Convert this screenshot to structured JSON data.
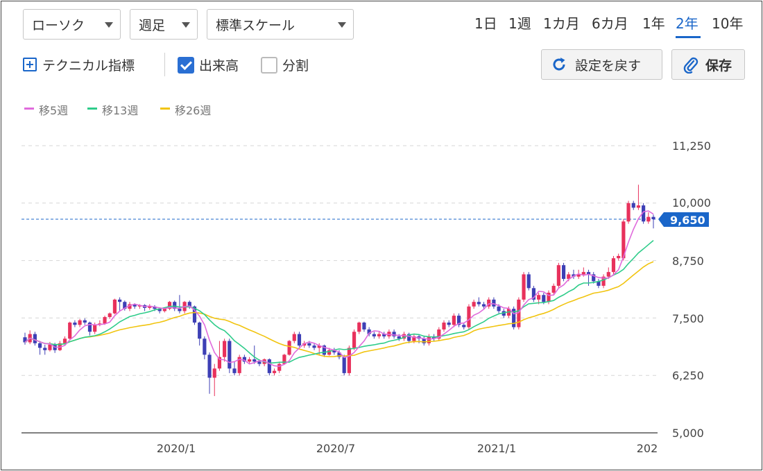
{
  "toolbar": {
    "chart_type": "ローソク",
    "interval": "週足",
    "scale": "標準スケール",
    "periods": [
      "1日",
      "1週",
      "1カ月",
      "6カ月",
      "1年",
      "2年",
      "10年"
    ],
    "active_period": "2年",
    "technical_label": "テクニカル指標",
    "volume_label": "出来高",
    "volume_checked": true,
    "split_label": "分割",
    "split_checked": false,
    "reset_label": "設定を戻す",
    "save_label": "保存"
  },
  "colors": {
    "accent": "#1a66c9",
    "up": "#e8315c",
    "down": "#3d3fb5",
    "ma5": "#e06bdc",
    "ma13": "#2ecc8a",
    "ma26": "#f1c40f",
    "price_tag": "#1a66c9"
  },
  "chart_data": {
    "type": "candlestick",
    "y_ticks": [
      "11,250",
      "10,000",
      "8,750",
      "7,500",
      "6,250",
      "5,000"
    ],
    "y_tick_values": [
      11250,
      10000,
      8750,
      7500,
      6250,
      5000
    ],
    "ylim": [
      5000,
      11250
    ],
    "x_ticks": [
      "2020/1",
      "2020/7",
      "2021/1",
      "202"
    ],
    "current_price_label": "9,650",
    "current_price": 9650,
    "legend": [
      {
        "name": "移5週",
        "color": "#e06bdc"
      },
      {
        "name": "移13週",
        "color": "#2ecc8a"
      },
      {
        "name": "移26週",
        "color": "#f1c40f"
      }
    ],
    "candles": [
      [
        7080,
        6970,
        7180,
        6920
      ],
      [
        6970,
        7150,
        7230,
        6930
      ],
      [
        7150,
        6950,
        7200,
        6900
      ],
      [
        6950,
        6850,
        7000,
        6700
      ],
      [
        6850,
        6800,
        6920,
        6700
      ],
      [
        6800,
        6920,
        6980,
        6770
      ],
      [
        6920,
        6800,
        6960,
        6740
      ],
      [
        6800,
        6950,
        7000,
        6780
      ],
      [
        6950,
        7050,
        7100,
        6900
      ],
      [
        7050,
        7400,
        7420,
        7020
      ],
      [
        7400,
        7350,
        7450,
        7300
      ],
      [
        7350,
        7450,
        7480,
        7300
      ],
      [
        7450,
        7400,
        7490,
        7350
      ],
      [
        7400,
        7200,
        7420,
        7120
      ],
      [
        7200,
        7350,
        7400,
        7150
      ],
      [
        7350,
        7380,
        7450,
        7320
      ],
      [
        7380,
        7520,
        7550,
        7350
      ],
      [
        7520,
        7600,
        7620,
        7480
      ],
      [
        7600,
        7900,
        7920,
        7580
      ],
      [
        7900,
        7850,
        7950,
        7650
      ],
      [
        7850,
        7700,
        7880,
        7660
      ],
      [
        7700,
        7800,
        7850,
        7650
      ],
      [
        7800,
        7750,
        7820,
        7700
      ],
      [
        7750,
        7780,
        7800,
        7700
      ],
      [
        7780,
        7720,
        7800,
        7650
      ],
      [
        7720,
        7750,
        7800,
        7680
      ],
      [
        7750,
        7700,
        7780,
        7650
      ],
      [
        7700,
        7650,
        7730,
        7600
      ],
      [
        7650,
        7700,
        7720,
        7620
      ],
      [
        7700,
        7850,
        7870,
        7670
      ],
      [
        7850,
        7700,
        7880,
        7650
      ],
      [
        7700,
        7650,
        8000,
        7600
      ],
      [
        7650,
        7850,
        7870,
        7600
      ],
      [
        7850,
        7750,
        7880,
        7700
      ],
      [
        7750,
        7400,
        7770,
        7350
      ],
      [
        7400,
        7050,
        7420,
        6900
      ],
      [
        7050,
        6700,
        7100,
        6600
      ],
      [
        6700,
        6200,
        6750,
        5850
      ],
      [
        6200,
        6400,
        6500,
        5800
      ],
      [
        6400,
        6650,
        7000,
        6350
      ],
      [
        6650,
        7000,
        7050,
        6550
      ],
      [
        7000,
        6400,
        7050,
        6300
      ],
      [
        6400,
        6300,
        6550,
        6250
      ],
      [
        6300,
        6650,
        6700,
        6250
      ],
      [
        6650,
        6550,
        6700,
        6500
      ],
      [
        6550,
        6600,
        6650,
        6500
      ],
      [
        6600,
        6550,
        6900,
        6500
      ],
      [
        6550,
        6500,
        6600,
        6450
      ],
      [
        6500,
        6600,
        6620,
        6450
      ],
      [
        6600,
        6300,
        6620,
        6250
      ],
      [
        6300,
        6350,
        6400,
        6250
      ],
      [
        6350,
        6500,
        6550,
        6300
      ],
      [
        6500,
        6700,
        6720,
        6480
      ],
      [
        6700,
        7000,
        7020,
        6680
      ],
      [
        7000,
        7150,
        7200,
        6950
      ],
      [
        7150,
        6900,
        7200,
        6870
      ],
      [
        6900,
        6950,
        7000,
        6850
      ],
      [
        6950,
        6900,
        7000,
        6850
      ],
      [
        6900,
        6850,
        6950,
        6800
      ],
      [
        6850,
        6900,
        6950,
        6700
      ],
      [
        6900,
        6700,
        6920,
        6650
      ],
      [
        6700,
        6800,
        6850,
        6680
      ],
      [
        6800,
        6750,
        6850,
        6700
      ],
      [
        6750,
        6650,
        6800,
        6600
      ],
      [
        6650,
        6300,
        6700,
        6250
      ],
      [
        6300,
        6850,
        6900,
        6250
      ],
      [
        6850,
        7200,
        7250,
        6800
      ],
      [
        7200,
        7400,
        7420,
        7150
      ],
      [
        7400,
        7250,
        7420,
        7200
      ],
      [
        7250,
        7150,
        7300,
        7100
      ],
      [
        7150,
        7100,
        7200,
        7050
      ],
      [
        7100,
        7150,
        7200,
        7050
      ],
      [
        7150,
        7100,
        7200,
        7050
      ],
      [
        7100,
        7200,
        7250,
        7050
      ],
      [
        7200,
        7100,
        7250,
        7050
      ],
      [
        7100,
        7050,
        7150,
        7000
      ],
      [
        7050,
        7150,
        7200,
        7000
      ],
      [
        7150,
        7000,
        7180,
        6950
      ],
      [
        7000,
        7100,
        7150,
        6950
      ],
      [
        7100,
        7050,
        7150,
        6950
      ],
      [
        7050,
        6950,
        7100,
        6900
      ],
      [
        6950,
        7100,
        7150,
        6900
      ],
      [
        7100,
        7050,
        7150,
        7000
      ],
      [
        7050,
        7250,
        7300,
        7000
      ],
      [
        7250,
        7400,
        7450,
        7200
      ],
      [
        7400,
        7350,
        7450,
        7300
      ],
      [
        7350,
        7550,
        7600,
        7300
      ],
      [
        7550,
        7350,
        7600,
        7300
      ],
      [
        7350,
        7300,
        7400,
        7250
      ],
      [
        7300,
        7750,
        7800,
        7250
      ],
      [
        7750,
        7850,
        7900,
        7700
      ],
      [
        7850,
        7800,
        7950,
        7750
      ],
      [
        7800,
        7750,
        7850,
        7700
      ],
      [
        7750,
        7900,
        7950,
        7700
      ],
      [
        7900,
        7750,
        7950,
        7700
      ],
      [
        7750,
        7650,
        7800,
        7600
      ],
      [
        7650,
        7550,
        7700,
        7500
      ],
      [
        7550,
        7700,
        7750,
        7500
      ],
      [
        7700,
        7300,
        7750,
        7250
      ],
      [
        7300,
        7900,
        7950,
        7250
      ],
      [
        7900,
        8450,
        8500,
        7850
      ],
      [
        8450,
        8150,
        8500,
        8100
      ],
      [
        8150,
        7900,
        8200,
        7850
      ],
      [
        7900,
        8000,
        8050,
        7800
      ],
      [
        8000,
        7850,
        8050,
        7800
      ],
      [
        7850,
        8050,
        8100,
        7800
      ],
      [
        8050,
        8200,
        8250,
        8000
      ],
      [
        8200,
        8650,
        8700,
        8150
      ],
      [
        8650,
        8350,
        8700,
        8300
      ],
      [
        8350,
        8450,
        8500,
        8300
      ],
      [
        8450,
        8400,
        8550,
        8350
      ],
      [
        8400,
        8450,
        8550,
        8350
      ],
      [
        8450,
        8500,
        8600,
        8400
      ],
      [
        8500,
        8450,
        8550,
        8200
      ],
      [
        8450,
        8300,
        8500,
        8250
      ],
      [
        8300,
        8200,
        8350,
        8150
      ],
      [
        8200,
        8400,
        8450,
        8150
      ],
      [
        8400,
        8500,
        8600,
        8350
      ],
      [
        8500,
        8800,
        8850,
        8450
      ],
      [
        8800,
        8850,
        8900,
        8750
      ],
      [
        8800,
        9600,
        9650,
        8750
      ],
      [
        9600,
        10000,
        10050,
        9550
      ],
      [
        10000,
        9900,
        10050,
        9850
      ],
      [
        9900,
        9950,
        10400,
        9850
      ],
      [
        9950,
        9600,
        10000,
        9550
      ],
      [
        9600,
        9700,
        9800,
        9550
      ],
      [
        9700,
        9650,
        9750,
        9450
      ]
    ]
  }
}
